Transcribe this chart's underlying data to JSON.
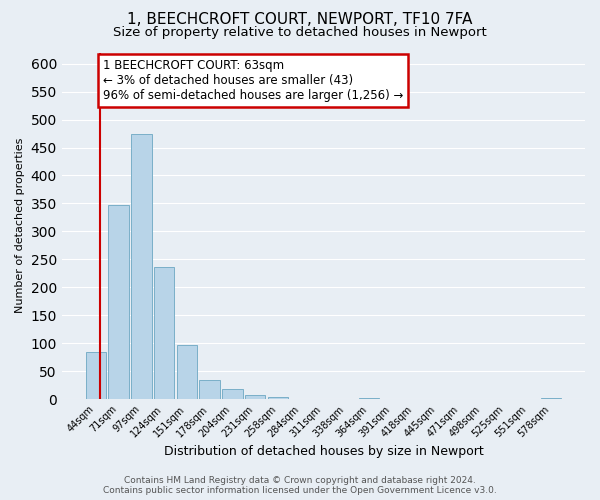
{
  "title": "1, BEECHCROFT COURT, NEWPORT, TF10 7FA",
  "subtitle": "Size of property relative to detached houses in Newport",
  "xlabel": "Distribution of detached houses by size in Newport",
  "ylabel": "Number of detached properties",
  "bar_labels": [
    "44sqm",
    "71sqm",
    "97sqm",
    "124sqm",
    "151sqm",
    "178sqm",
    "204sqm",
    "231sqm",
    "258sqm",
    "284sqm",
    "311sqm",
    "338sqm",
    "364sqm",
    "391sqm",
    "418sqm",
    "445sqm",
    "471sqm",
    "498sqm",
    "525sqm",
    "551sqm",
    "578sqm"
  ],
  "bar_values": [
    85,
    348,
    475,
    237,
    97,
    35,
    18,
    7,
    3,
    0,
    0,
    0,
    2,
    0,
    0,
    1,
    0,
    0,
    0,
    0,
    2
  ],
  "bar_color": "#b8d4e8",
  "bar_edge_color": "#7aafc8",
  "annotation_box_text": "1 BEECHCROFT COURT: 63sqm\n← 3% of detached houses are smaller (43)\n96% of semi-detached houses are larger (1,256) →",
  "box_color": "white",
  "box_edge_color": "#cc0000",
  "ylim": [
    0,
    620
  ],
  "yticks": [
    0,
    50,
    100,
    150,
    200,
    250,
    300,
    350,
    400,
    450,
    500,
    550,
    600
  ],
  "vline_color": "#cc0000",
  "footer_line1": "Contains HM Land Registry data © Crown copyright and database right 2024.",
  "footer_line2": "Contains public sector information licensed under the Open Government Licence v3.0.",
  "background_color": "#e8eef4",
  "grid_color": "#ffffff",
  "title_fontsize": 11,
  "subtitle_fontsize": 9.5,
  "xlabel_fontsize": 9,
  "ylabel_fontsize": 8,
  "footer_fontsize": 6.5,
  "annot_fontsize": 8.5
}
